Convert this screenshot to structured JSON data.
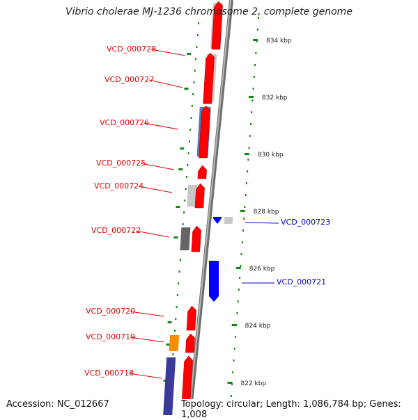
{
  "title": "Vibrio cholerae MJ-1236 chromosome 2, complete genome",
  "footer": {
    "accession": "Accession: NC_012667",
    "summary": "Topology: circular; Length: 1,086,784 bp; Genes: 1,008"
  },
  "colors": {
    "forward_label": "#dd0000",
    "reverse_label": "#0000cc",
    "forward_cds": "#ff0000",
    "reverse_cds": "#0000ff",
    "backbone": "#888888",
    "tick": "#118811",
    "cog_lightgray": "#c8c8c8",
    "cog_steelblue": "#4a7fc0",
    "cog_darkgray": "#666666",
    "cog_orange": "#ff8c00",
    "cog_slateblue": "#3a3a9a"
  },
  "scale_labels": [
    "834 kbp",
    "832 kbp",
    "830 kbp",
    "828 kbp",
    "826 kbp",
    "824 kbp",
    "822 kbp"
  ],
  "genes": [
    {
      "label": "VCD_000728",
      "strand": "forward",
      "cog": "cog_lightgray"
    },
    {
      "label": "VCD_000727",
      "strand": "forward",
      "cog": "cog_lightgray"
    },
    {
      "label": "VCD_000726",
      "strand": "forward",
      "cog": "cog_steelblue"
    },
    {
      "label": "VCD_000725",
      "strand": "forward",
      "cog": ""
    },
    {
      "label": "VCD_000724",
      "strand": "forward",
      "cog": "cog_lightgray"
    },
    {
      "label": "VCD_000723",
      "strand": "reverse",
      "cog": "cog_lightgray"
    },
    {
      "label": "VCD_000722",
      "strand": "forward",
      "cog": "cog_darkgray"
    },
    {
      "label": "VCD_000721",
      "strand": "reverse",
      "cog": ""
    },
    {
      "label": "VCD_000720",
      "strand": "forward",
      "cog": ""
    },
    {
      "label": "VCD_000719",
      "strand": "forward",
      "cog": "cog_orange"
    },
    {
      "label": "VCD_000718",
      "strand": "forward",
      "cog": "cog_slateblue"
    }
  ]
}
